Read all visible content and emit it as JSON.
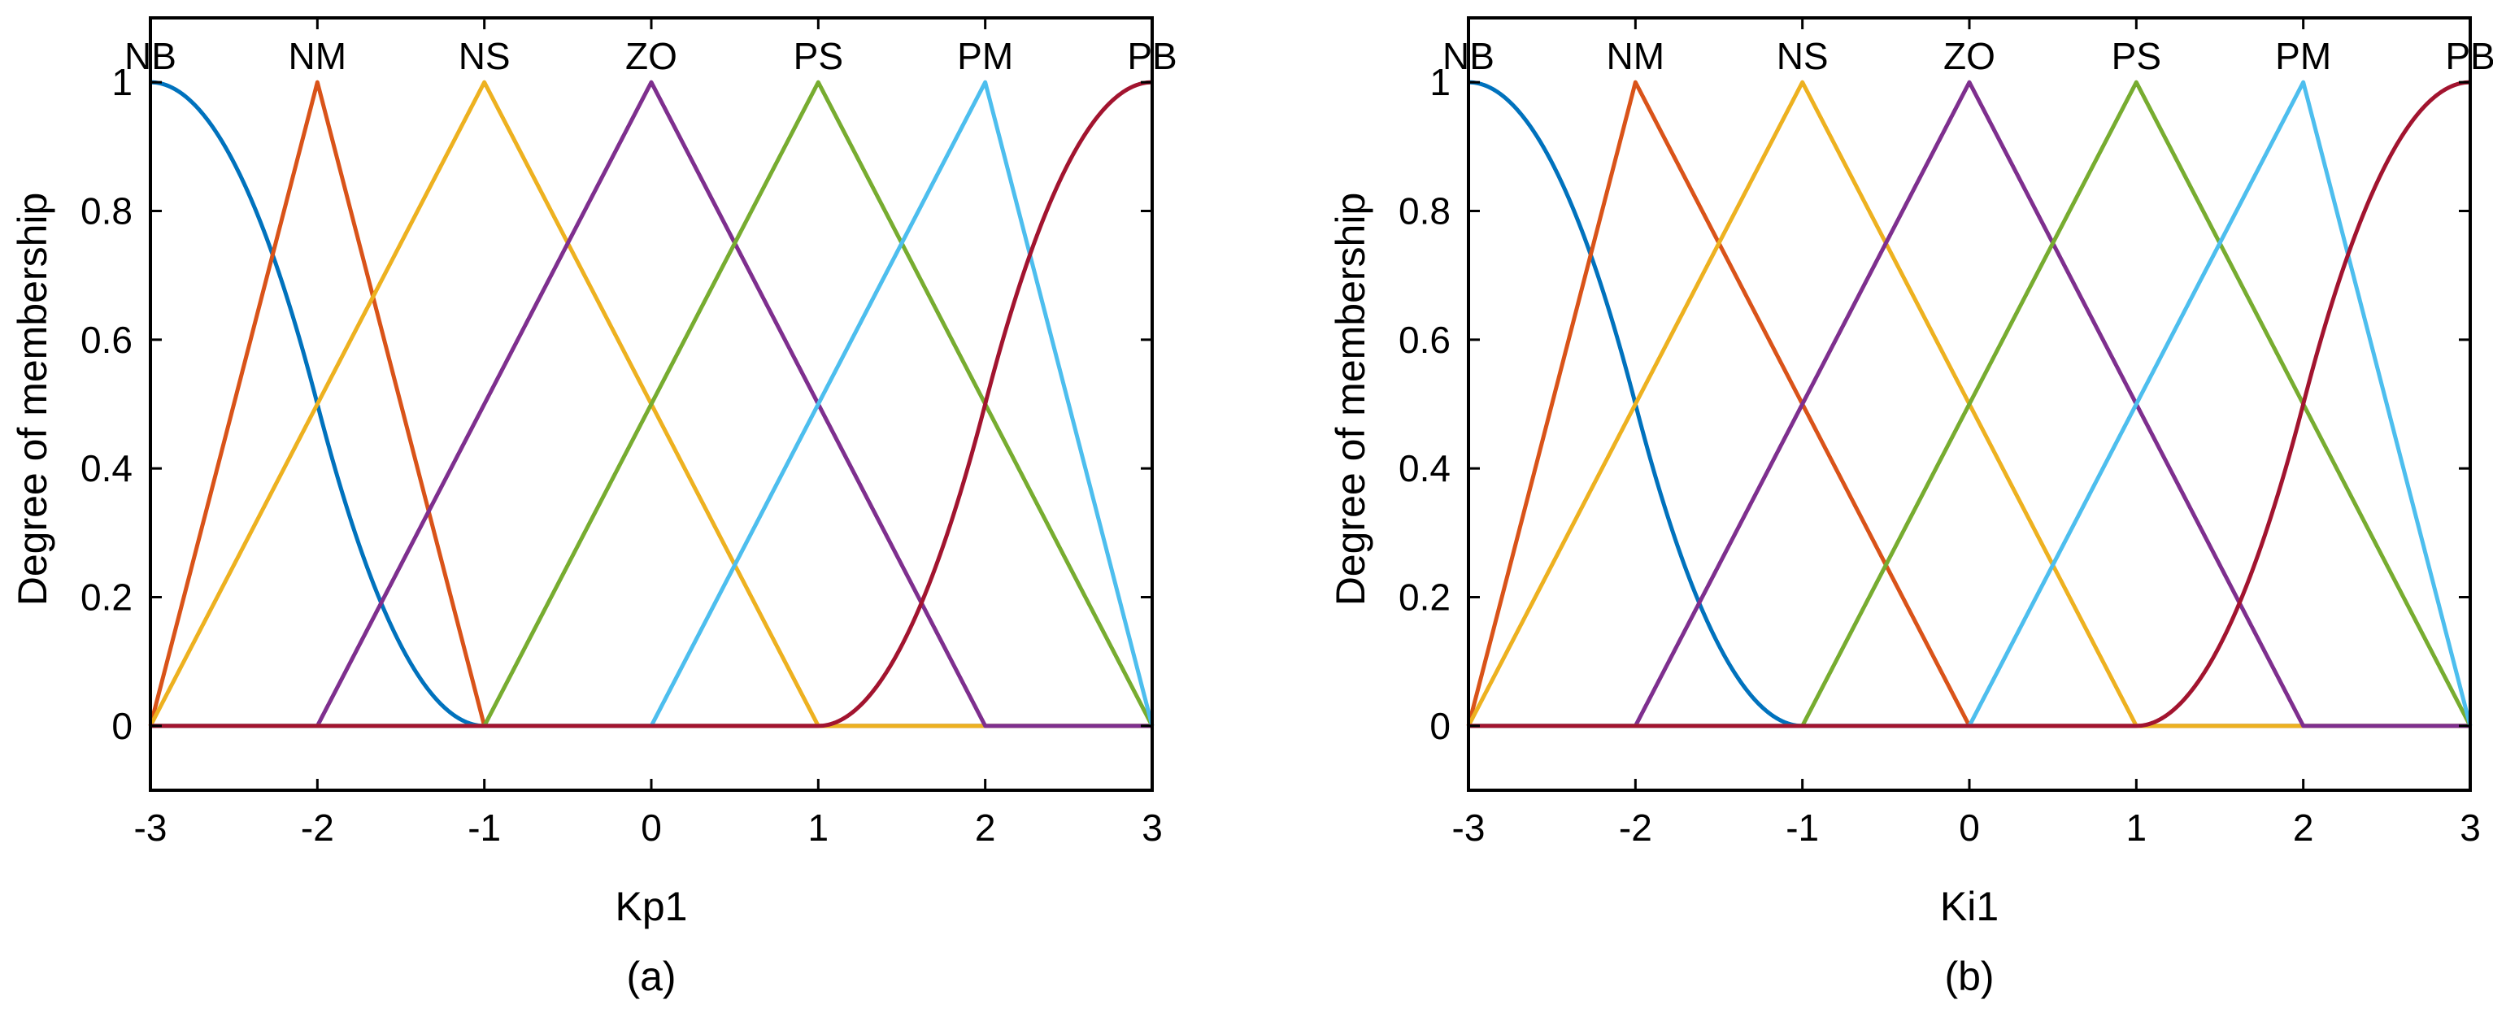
{
  "chart_data": [
    {
      "type": "line",
      "title": "",
      "caption": "(a)",
      "xlabel": "Kp1",
      "ylabel": "Degree of membership",
      "xlim": [
        -3,
        3
      ],
      "ylim": [
        -0.1,
        1.1
      ],
      "xticks": [
        "-3",
        "-2",
        "-1",
        "0",
        "1",
        "2",
        "3"
      ],
      "yticks": [
        "0",
        "0.2",
        "0.4",
        "0.6",
        "0.8",
        "1"
      ],
      "grid": false,
      "series": [
        {
          "name": "NB",
          "shape": "zmf",
          "params": [
            -3,
            -1
          ],
          "peak": -3,
          "color": "#0072BD"
        },
        {
          "name": "NM",
          "shape": "trimf",
          "params": [
            -3,
            -2,
            -1
          ],
          "peak": -2,
          "color": "#D95319"
        },
        {
          "name": "NS",
          "shape": "trimf",
          "params": [
            -3,
            -1,
            1
          ],
          "peak": -1,
          "color": "#EDB120"
        },
        {
          "name": "ZO",
          "shape": "trimf",
          "params": [
            -2,
            0,
            2
          ],
          "peak": 0,
          "color": "#7E2F8E"
        },
        {
          "name": "PS",
          "shape": "trimf",
          "params": [
            -1,
            1,
            3
          ],
          "peak": 1,
          "color": "#77AC30"
        },
        {
          "name": "PM",
          "shape": "trimf",
          "params": [
            0,
            2,
            3
          ],
          "peak": 2,
          "color": "#4DBEEE"
        },
        {
          "name": "PB",
          "shape": "smf",
          "params": [
            1,
            3
          ],
          "peak": 3,
          "color": "#A2142F"
        }
      ]
    },
    {
      "type": "line",
      "title": "",
      "caption": "(b)",
      "xlabel": "Ki1",
      "ylabel": "Degree of membership",
      "xlim": [
        -3,
        3
      ],
      "ylim": [
        -0.1,
        1.1
      ],
      "xticks": [
        "-3",
        "-2",
        "-1",
        "0",
        "1",
        "2",
        "3"
      ],
      "yticks": [
        "0",
        "0.2",
        "0.4",
        "0.6",
        "0.8",
        "1"
      ],
      "grid": false,
      "series": [
        {
          "name": "NB",
          "shape": "zmf",
          "params": [
            -3,
            -1
          ],
          "peak": -3,
          "color": "#0072BD"
        },
        {
          "name": "NM",
          "shape": "trimf",
          "params": [
            -3,
            -2,
            0
          ],
          "peak": -2,
          "color": "#D95319"
        },
        {
          "name": "NS",
          "shape": "trimf",
          "params": [
            -3,
            -1,
            1
          ],
          "peak": -1,
          "color": "#EDB120"
        },
        {
          "name": "ZO",
          "shape": "trimf",
          "params": [
            -2,
            0,
            2
          ],
          "peak": 0,
          "color": "#7E2F8E"
        },
        {
          "name": "PS",
          "shape": "trimf",
          "params": [
            -1,
            1,
            3
          ],
          "peak": 1,
          "color": "#77AC30"
        },
        {
          "name": "PM",
          "shape": "trimf",
          "params": [
            0,
            2,
            3
          ],
          "peak": 2,
          "color": "#4DBEEE"
        },
        {
          "name": "PB",
          "shape": "smf",
          "params": [
            1,
            3
          ],
          "peak": 3,
          "color": "#A2142F"
        }
      ]
    }
  ]
}
